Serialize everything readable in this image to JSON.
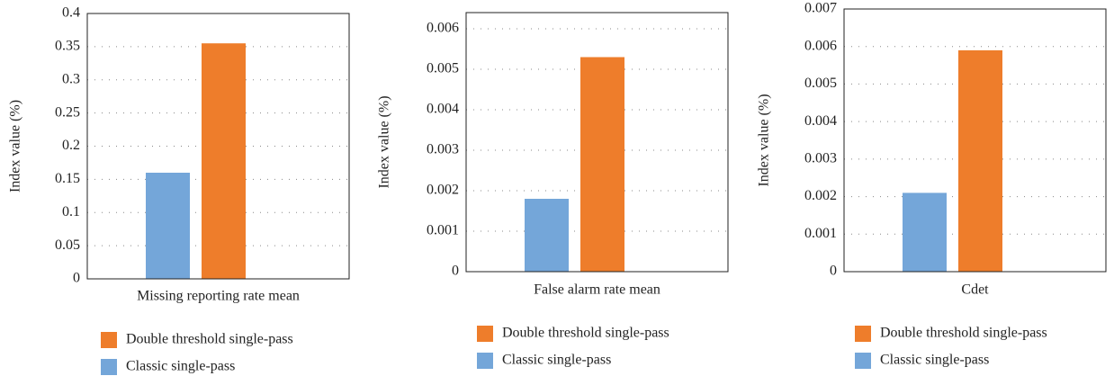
{
  "chart_data": [
    {
      "type": "bar",
      "ylabel": "Index value (%)",
      "categories": [
        "Missing reporting rate mean"
      ],
      "series": [
        {
          "name": "Classic single-pass",
          "color": "#74a6d9",
          "values": [
            0.16
          ]
        },
        {
          "name": "Double threshold single-pass",
          "color": "#ee7d2b",
          "values": [
            0.355
          ]
        }
      ],
      "ylim": [
        0,
        0.4
      ],
      "yticks": [
        0,
        0.05,
        0.1,
        0.15,
        0.2,
        0.25,
        0.3,
        0.35,
        0.4
      ],
      "grid": true
    },
    {
      "type": "bar",
      "ylabel": "Index value (%)",
      "categories": [
        "False alarm rate mean"
      ],
      "series": [
        {
          "name": "Classic single-pass",
          "color": "#74a6d9",
          "values": [
            0.0018
          ]
        },
        {
          "name": "Double threshold single-pass",
          "color": "#ee7d2b",
          "values": [
            0.0053
          ]
        }
      ],
      "ylim": [
        0,
        0.0064
      ],
      "yticks": [
        0,
        0.001,
        0.002,
        0.003,
        0.004,
        0.005,
        0.006
      ],
      "grid": true
    },
    {
      "type": "bar",
      "ylabel": "Index value (%)",
      "categories": [
        "Cdet"
      ],
      "series": [
        {
          "name": "Classic single-pass",
          "color": "#74a6d9",
          "values": [
            0.0021
          ]
        },
        {
          "name": "Double threshold single-pass",
          "color": "#ee7d2b",
          "values": [
            0.0059
          ]
        }
      ],
      "ylim": [
        0,
        0.007
      ],
      "yticks": [
        0,
        0.001,
        0.002,
        0.003,
        0.004,
        0.005,
        0.006,
        0.007
      ],
      "grid": true
    }
  ]
}
